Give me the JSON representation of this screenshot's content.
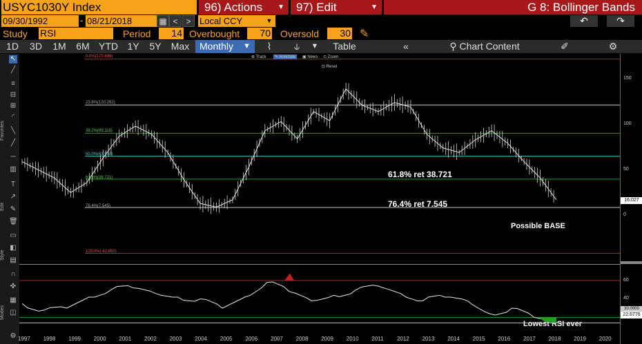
{
  "header": {
    "security": "USYC1030Y Index",
    "actions_label": "96) Actions",
    "edit_label": "97) Edit",
    "function_label": "G 8: Bollinger Bands"
  },
  "dates": {
    "start": "09/30/1992",
    "separator": "-",
    "end": "08/21/2018",
    "currency": "Local CCY"
  },
  "study": {
    "study_label": "Study",
    "study_value": "RSI",
    "period_label": "Period",
    "period_value": "14",
    "overbought_label": "Overbought",
    "overbought_value": "70",
    "oversold_label": "Oversold",
    "oversold_value": "30"
  },
  "toolbar": {
    "ranges": [
      "1D",
      "3D",
      "1M",
      "6M",
      "YTD",
      "1Y",
      "5Y",
      "Max"
    ],
    "period": "Monthly",
    "table": "Table",
    "chart_content": "Chart Content"
  },
  "chart_controls": {
    "track": "Track",
    "annotate": "Annotate",
    "news": "News",
    "zoom": "Zoom",
    "reset": "Reset"
  },
  "sidebar_labels": {
    "favorites": "Favorites",
    "edit": "Edit",
    "style": "Style",
    "modes": "Modes"
  },
  "price_axis": {
    "ticks": [
      "150",
      "100",
      "50",
      "0"
    ],
    "last_value": "16.027"
  },
  "rsi_axis": {
    "ticks": [
      "60",
      "40"
    ],
    "current": "22.6776",
    "oversold_mark": "30.0000"
  },
  "fib_levels": [
    {
      "label": "0.0%(170.686)",
      "value": 170.686
    },
    {
      "label": "23.6%(120.292)",
      "value": 120.292
    },
    {
      "label": "38.2%(89.115)",
      "value": 89.115
    },
    {
      "label": "50.0%(63.918)",
      "value": 63.918
    },
    {
      "label": "61.8%(38.721)",
      "value": 38.721
    },
    {
      "label": "76.4%(7.545)",
      "value": 7.545
    },
    {
      "label": "100.0%(-42.850)",
      "value": -42.85
    }
  ],
  "annotations": {
    "ret618": "61.8% ret 38.721",
    "ret764": "76.4% ret 7.545",
    "base": "Possible BASE",
    "rsi_low": "Lowest RSI ever"
  },
  "x_axis": [
    "1997",
    "1998",
    "1999",
    "2000",
    "2001",
    "2002",
    "2003",
    "2004",
    "2005",
    "2006",
    "2007",
    "2008",
    "2009",
    "2010",
    "2011",
    "2012",
    "2013",
    "2014",
    "2015",
    "2016",
    "2017",
    "2018",
    "2019",
    "2020"
  ],
  "colors": {
    "amber": "#f7a21b",
    "red_header": "#a6181a",
    "selected_blue": "#3d6cb4",
    "fib_red": "#d01818",
    "fib_green": "#1fa01f",
    "fib_cyan": "#3fb6c6",
    "fib_gray": "#c8c8c8"
  },
  "chart_data": {
    "type": "line",
    "series": [
      {
        "values": [
          58,
          49,
          40,
          24,
          35,
          62,
          86,
          97,
          88,
          68,
          38,
          12,
          8,
          16,
          52,
          92,
          102,
          83,
          113,
          103,
          138,
          120,
          113,
          123,
          118,
          88,
          73,
          68,
          82,
          92,
          78,
          58,
          40,
          16
        ]
      },
      {
        "values": [
          45,
          38,
          40,
          52,
          60,
          62,
          56,
          52,
          50,
          40,
          52,
          68,
          58,
          48,
          54,
          60,
          64,
          56,
          48,
          52,
          48,
          34,
          40,
          30,
          25
        ]
      }
    ]
  }
}
